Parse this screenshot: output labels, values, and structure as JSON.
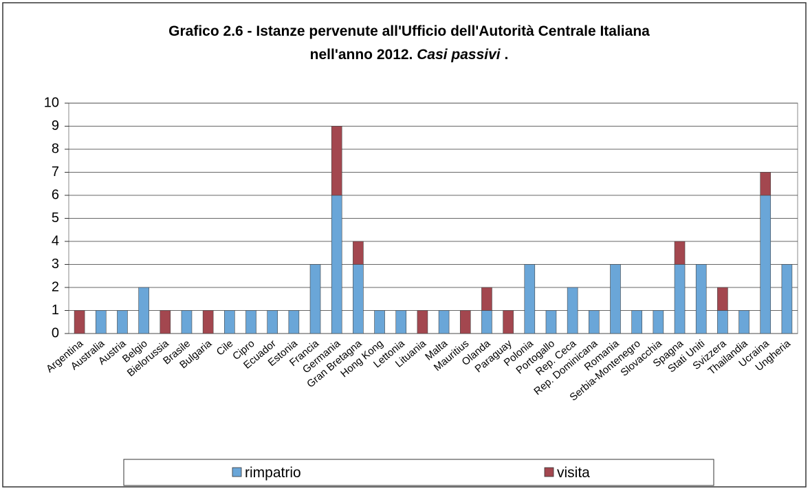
{
  "chart_data": {
    "type": "stacked_bar",
    "title": [
      "Grafico 2.6 - Istanze pervenute all'Ufficio dell'Autorità Centrale Italiana",
      "nell'anno 2012. ",
      "Casi passivi",
      " ."
    ],
    "categories": [
      "Argentina",
      "Australia",
      "Austria",
      "Belgio",
      "Bielorussia",
      "Brasile",
      "Bulgaria",
      "Cile",
      "Cipro",
      "Ecuador",
      "Estonia",
      "Francia",
      "Germania",
      "Gran Bretagna",
      "Hong Kong",
      "Lettonia",
      "Lituania",
      "Malta",
      "Mauritius",
      "Olanda",
      "Paraguay",
      "Polonia",
      "Portogallo",
      "Rep. Ceca",
      "Rep. Dominicana",
      "Romania",
      "Serbia-Montenegro",
      "Slovacchia",
      "Spagna",
      "Stati Uniti",
      "Svizzera",
      "Thailandia",
      "Ucraina",
      "Ungheria"
    ],
    "series": [
      {
        "name": "rimpatrio",
        "color": "#6aa6d8",
        "values": [
          0,
          1,
          1,
          2,
          0,
          1,
          0,
          1,
          1,
          1,
          1,
          3,
          6,
          3,
          1,
          1,
          0,
          1,
          0,
          1,
          0,
          3,
          1,
          2,
          1,
          3,
          1,
          1,
          3,
          3,
          1,
          1,
          6,
          3
        ]
      },
      {
        "name": "visita",
        "color": "#a3474f",
        "values": [
          1,
          0,
          0,
          0,
          1,
          0,
          1,
          0,
          0,
          0,
          0,
          0,
          3,
          1,
          0,
          0,
          1,
          0,
          1,
          1,
          1,
          0,
          0,
          0,
          0,
          0,
          0,
          0,
          1,
          0,
          1,
          0,
          1,
          0
        ]
      }
    ],
    "ylim": [
      0,
      10
    ],
    "yticks": [
      0,
      1,
      2,
      3,
      4,
      5,
      6,
      7,
      8,
      9,
      10
    ],
    "grid": true
  }
}
